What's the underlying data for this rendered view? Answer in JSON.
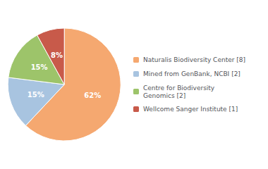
{
  "chart_data": {
    "type": "pie",
    "categories": [
      "Naturalis Biodiversity Center [8]",
      "Mined from GenBank, NCBI [2]",
      "Centre for Biodiversity\nGenomics [2]",
      "Wellcome Sanger Institute [1]"
    ],
    "values": [
      62,
      15,
      15,
      8
    ],
    "value_labels": [
      "62%",
      "15%",
      "15%",
      "8%"
    ],
    "colors": [
      "#F5A870",
      "#A8C4E0",
      "#9DC46A",
      "#C85A4A"
    ],
    "data_labels": true,
    "legend": "right"
  }
}
